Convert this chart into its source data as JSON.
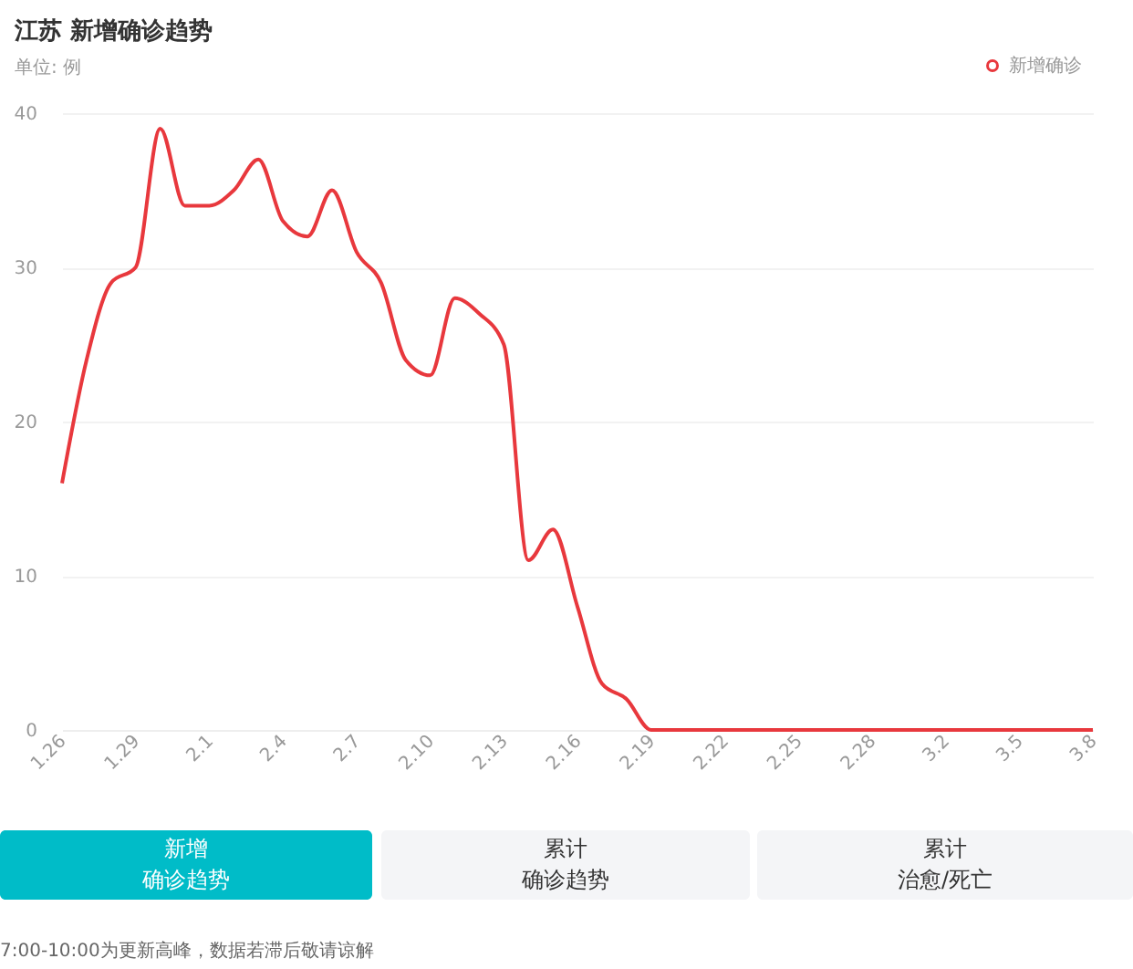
{
  "chart_data": {
    "type": "line",
    "title": "江苏 新增确诊趋势",
    "subtitle": "单位: 例",
    "categories": [
      "1.26",
      null,
      null,
      "1.29",
      null,
      null,
      "2.1",
      null,
      null,
      "2.4",
      null,
      null,
      "2.7",
      null,
      null,
      "2.10",
      null,
      null,
      "2.13",
      null,
      null,
      "2.16",
      null,
      null,
      "2.19",
      null,
      null,
      "2.22",
      null,
      null,
      "2.25",
      null,
      null,
      "2.28",
      null,
      null,
      "3.2",
      null,
      null,
      "3.5",
      null,
      null,
      "3.8"
    ],
    "series": [
      {
        "name": "新增确诊",
        "color": "#e8383d",
        "values": [
          16,
          24,
          29,
          30,
          39,
          34,
          34,
          35,
          37,
          33,
          32,
          35,
          31,
          29,
          24,
          23,
          28,
          27,
          25,
          11,
          13,
          8,
          3,
          2,
          0,
          0,
          0,
          0,
          0,
          0,
          0,
          0,
          0,
          0,
          0,
          0,
          0,
          0,
          0,
          0,
          0,
          0,
          0
        ]
      }
    ],
    "ylim": [
      0,
      40
    ],
    "yticks": [
      0,
      10,
      20,
      30,
      40
    ],
    "grid": "y",
    "legend": "top right",
    "marker": "none",
    "line_style": "solid",
    "annotations": [
      "新增",
      "确诊趋势",
      "累计",
      "确诊趋势",
      "累计",
      "治愈/死亡",
      "7:00-10:00为更新高峰，数据若滞后敬请谅解"
    ]
  }
}
